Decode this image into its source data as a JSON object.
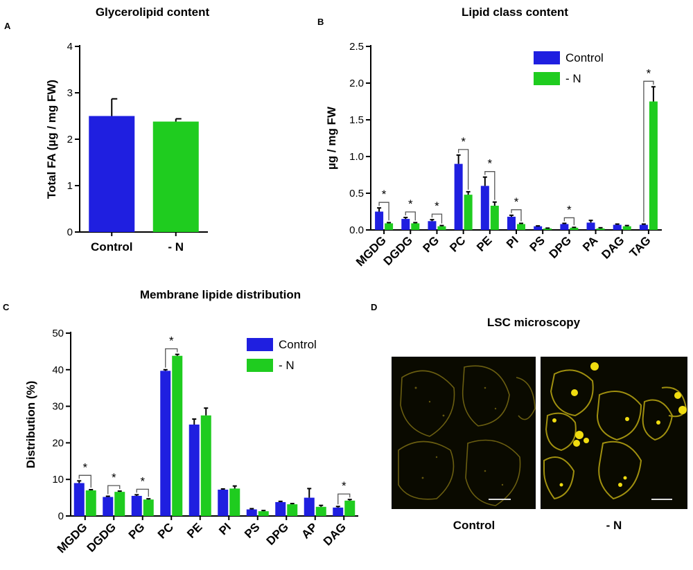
{
  "colors": {
    "control": "#1f1fe0",
    "minus_n": "#1fcc1f",
    "micro_bg": "#0a0a00",
    "micro_fg": "#e6d21a"
  },
  "chart_data": [
    {
      "panel": "A",
      "type": "bar",
      "title": "Glycerolipid content",
      "ylabel": "Total FA (µg / mg FW)",
      "ylim": [
        0,
        4
      ],
      "yticks": [
        0,
        1,
        2,
        3,
        4
      ],
      "categories": [
        "Control",
        "- N"
      ],
      "values": [
        2.5,
        2.38
      ],
      "errors": [
        0.37,
        0.06
      ],
      "colors": [
        "#1f1fe0",
        "#1fcc1f"
      ]
    },
    {
      "panel": "B",
      "type": "bar",
      "title": "Lipid class content",
      "ylabel": "µg / mg FW",
      "ylim": [
        0,
        2.5
      ],
      "yticks": [
        0.0,
        0.5,
        1.0,
        1.5,
        2.0,
        2.5
      ],
      "categories": [
        "MGDG",
        "DGDG",
        "PG",
        "PC",
        "PE",
        "PI",
        "PS",
        "DPG",
        "PA",
        "DAG",
        "TAG"
      ],
      "legend": "top-right",
      "series": [
        {
          "name": "Control",
          "values": [
            0.25,
            0.15,
            0.12,
            0.9,
            0.6,
            0.18,
            0.05,
            0.08,
            0.1,
            0.07,
            0.07
          ],
          "errors": [
            0.05,
            0.02,
            0.02,
            0.12,
            0.12,
            0.02,
            0.005,
            0.01,
            0.03,
            0.01,
            0.01
          ]
        },
        {
          "name": "- N",
          "values": [
            0.09,
            0.09,
            0.05,
            0.48,
            0.33,
            0.08,
            0.02,
            0.03,
            0.02,
            0.05,
            1.75
          ],
          "errors": [
            0.01,
            0.01,
            0.01,
            0.04,
            0.05,
            0.01,
            0.005,
            0.005,
            0.01,
            0.01,
            0.2
          ]
        }
      ],
      "significant": [
        {
          "category": "MGDG",
          "label": "*"
        },
        {
          "category": "DGDG",
          "label": "*"
        },
        {
          "category": "PG",
          "label": "*"
        },
        {
          "category": "PC",
          "label": "*"
        },
        {
          "category": "PE",
          "label": "*"
        },
        {
          "category": "PI",
          "label": "*"
        },
        {
          "category": "DPG",
          "label": "*"
        },
        {
          "category": "TAG",
          "label": "*"
        }
      ]
    },
    {
      "panel": "C",
      "type": "bar",
      "title": "Membrane lipide distribution",
      "ylabel": "Distribution (%)",
      "ylim": [
        0,
        50
      ],
      "yticks": [
        0,
        10,
        20,
        30,
        40,
        50
      ],
      "categories": [
        "MGDG",
        "DGDG",
        "PG",
        "PC",
        "PE",
        "PI",
        "PS",
        "DPG",
        "AP",
        "DAG"
      ],
      "legend": "top-right",
      "series": [
        {
          "name": "Control",
          "values": [
            9.0,
            5.2,
            5.5,
            39.7,
            25.0,
            7.2,
            1.8,
            3.8,
            5.0,
            2.3
          ],
          "errors": [
            0.6,
            0.2,
            0.3,
            0.3,
            1.5,
            0.2,
            0.2,
            0.2,
            2.5,
            0.3
          ]
        },
        {
          "name": "- N",
          "values": [
            7.0,
            6.6,
            4.5,
            43.8,
            27.5,
            7.5,
            1.3,
            3.2,
            2.5,
            4.2
          ],
          "errors": [
            0.2,
            0.2,
            0.2,
            0.4,
            2.0,
            0.7,
            0.2,
            0.2,
            0.4,
            0.3
          ]
        }
      ],
      "significant": [
        {
          "category": "MGDG",
          "label": "*"
        },
        {
          "category": "DGDG",
          "label": "*"
        },
        {
          "category": "PG",
          "label": "*"
        },
        {
          "category": "PC",
          "label": "*"
        },
        {
          "category": "DAG",
          "label": "*"
        }
      ]
    }
  ],
  "panels": {
    "a_letter": "A",
    "b_letter": "B",
    "c_letter": "C",
    "d_letter": "D"
  },
  "microscopy": {
    "title": "LSC microscopy",
    "labels": [
      "Control",
      "- N"
    ]
  }
}
